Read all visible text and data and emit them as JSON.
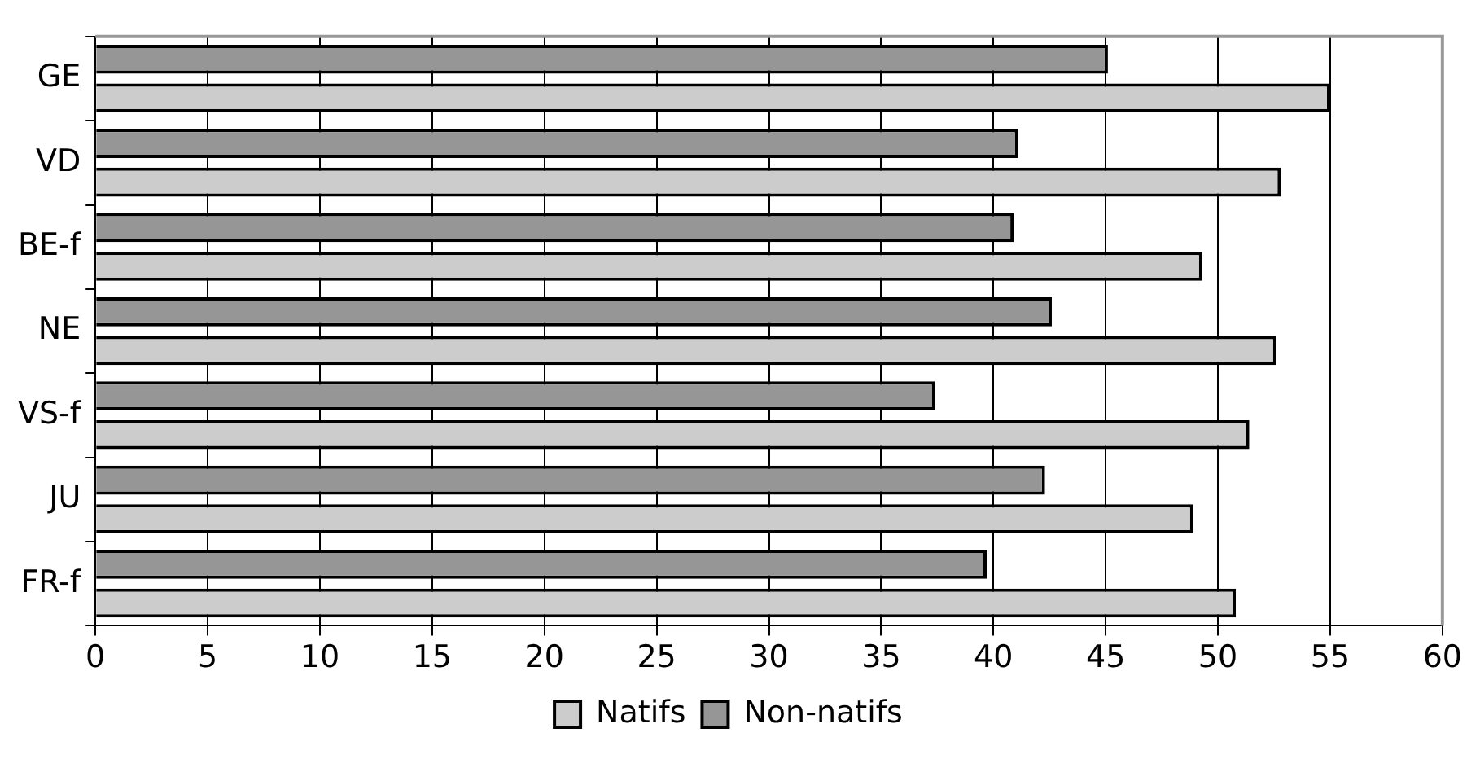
{
  "chart_data": {
    "type": "bar",
    "orientation": "horizontal",
    "categories": [
      "GE",
      "VD",
      "BE-f",
      "NE",
      "VS-f",
      "JU",
      "FR-f"
    ],
    "series": [
      {
        "name": "Natifs",
        "color": "#cccccc",
        "values": [
          55.0,
          52.8,
          49.3,
          52.6,
          51.4,
          48.9,
          50.8
        ]
      },
      {
        "name": "Non-natifs",
        "color": "#969696",
        "values": [
          45.1,
          41.1,
          40.9,
          42.6,
          37.4,
          42.3,
          39.7
        ]
      }
    ],
    "xlim": [
      0,
      60
    ],
    "xticks": [
      0,
      5,
      10,
      15,
      20,
      25,
      30,
      35,
      40,
      45,
      50,
      55,
      60
    ],
    "grid": "x",
    "legend": "bottom"
  }
}
